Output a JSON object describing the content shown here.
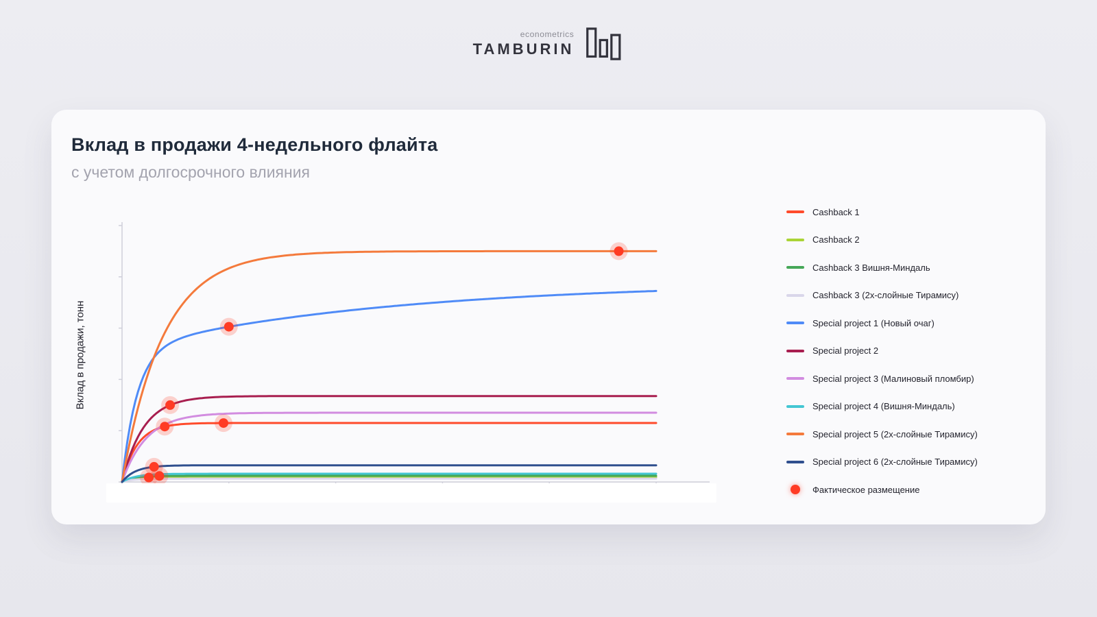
{
  "logo": {
    "econometrics": "econometrics",
    "brand": "TAMBURIN"
  },
  "header": {
    "title": "Вклад в продажи 4-недельного флайта",
    "subtitle": "с учетом долгосрочного влияния"
  },
  "chart_data": {
    "type": "line",
    "title": "Вклад в продажи 4-недельного флайта",
    "subtitle": "с учетом долгосрочного влияния",
    "ylabel": "Вклад в продажи, тонн",
    "xlabel": "",
    "x_range": [
      0,
      100
    ],
    "y_range": [
      0,
      100
    ],
    "x_ticks": [
      0,
      20,
      40,
      60,
      80,
      100
    ],
    "y_ticks": [
      0,
      20,
      40,
      60,
      80,
      100
    ],
    "grid": false,
    "legend_position": "right",
    "marker_label": "Фактическое размещение",
    "marker_color": "#ff3b24",
    "series": [
      {
        "name": "Cashback 1",
        "color": "#ff4b2b",
        "plateau": 23,
        "components": [
          {
            "a": 23,
            "k": 0.35
          }
        ]
      },
      {
        "name": "Cashback 2",
        "color": "#aad436",
        "plateau": 1.9,
        "components": [
          {
            "a": 1.9,
            "k": 0.5
          }
        ]
      },
      {
        "name": "Cashback 3 Вишня-Миндаль",
        "color": "#46a758",
        "plateau": 2.4,
        "components": [
          {
            "a": 2.4,
            "k": 0.5
          }
        ]
      },
      {
        "name": "Cashback 3 (2х-слойные Тирамису)",
        "color": "#d9d6ea",
        "plateau": 1.3,
        "components": [
          {
            "a": 1.3,
            "k": 0.5
          }
        ]
      },
      {
        "name": "Special project 1 (Новый очаг)",
        "color": "#4f8bf7",
        "plateau": 78,
        "components": [
          {
            "a": 52,
            "k": 0.35
          },
          {
            "a": 26,
            "k": 0.02
          }
        ]
      },
      {
        "name": "Special project 2",
        "color": "#a81e4f",
        "plateau": 33.5,
        "components": [
          {
            "a": 33.5,
            "k": 0.25
          }
        ]
      },
      {
        "name": "Special project 3 (Малиновый пломбир)",
        "color": "#d28ce0",
        "plateau": 27,
        "components": [
          {
            "a": 27,
            "k": 0.22
          }
        ]
      },
      {
        "name": "Special project 4 (Вишня-Миндаль)",
        "color": "#43c6d3",
        "plateau": 3.2,
        "components": [
          {
            "a": 3.2,
            "k": 0.4
          }
        ]
      },
      {
        "name": "Special project 5 (2х-слойные Тирамису)",
        "color": "#f47a3c",
        "plateau": 90,
        "components": [
          {
            "a": 90,
            "k": 0.13
          }
        ]
      },
      {
        "name": "Special project 6 (2х-слойные Тирамису)",
        "color": "#2f4f8e",
        "plateau": 6.5,
        "components": [
          {
            "a": 6.5,
            "k": 0.4
          }
        ]
      }
    ],
    "markers": [
      {
        "series": "Special project 5 (2х-слойные Тирамису)",
        "x": 93
      },
      {
        "series": "Special project 1 (Новый очаг)",
        "x": 20
      },
      {
        "series": "Special project 2",
        "x": 9
      },
      {
        "series": "Cashback 1",
        "x": 8
      },
      {
        "series": "Cashback 1",
        "x": 19
      },
      {
        "series": "Special project 6 (2х-слойные Тирамису)",
        "x": 6
      },
      {
        "series": "Cashback 3 Вишня-Миндаль",
        "x": 7
      },
      {
        "series": "Cashback 2",
        "x": 5
      }
    ]
  }
}
